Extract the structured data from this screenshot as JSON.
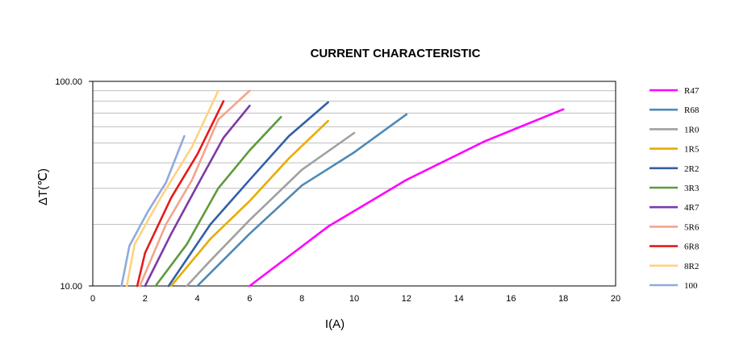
{
  "chart_data": {
    "type": "line",
    "title": "CURRENT CHARACTERISTIC",
    "xlabel": "I(A)",
    "ylabel": "ΔT(℃)",
    "x_scale": "linear",
    "y_scale": "log",
    "xlim": [
      0,
      20
    ],
    "ylim": [
      10,
      100
    ],
    "x_ticks": [
      "0",
      "2",
      "4",
      "6",
      "8",
      "10",
      "12",
      "14",
      "16",
      "18",
      "20"
    ],
    "y_ticks": [
      "10.00",
      "100.00"
    ],
    "grid": "horizontal log gridlines",
    "legend_position": "right",
    "series": [
      {
        "name": "R47",
        "color": "#ff00ff",
        "x": [
          6,
          9,
          12,
          15,
          18
        ],
        "y": [
          10,
          19.5,
          33,
          51,
          73
        ]
      },
      {
        "name": "R68",
        "color": "#4f89b5",
        "x": [
          4,
          6,
          8,
          10,
          12
        ],
        "y": [
          10,
          18,
          31,
          45,
          69
        ]
      },
      {
        "name": "1R0",
        "color": "#a0a0a0",
        "x": [
          3.6,
          4.5,
          6,
          8,
          10
        ],
        "y": [
          10,
          13.3,
          21,
          37,
          56
        ]
      },
      {
        "name": "1R5",
        "color": "#e6ac00",
        "x": [
          3,
          4.5,
          6,
          7.5,
          9
        ],
        "y": [
          10,
          17,
          26,
          42,
          64
        ]
      },
      {
        "name": "2R2",
        "color": "#335fa6",
        "x": [
          2.9,
          4.5,
          6,
          7.5,
          9
        ],
        "y": [
          10,
          20,
          33,
          54,
          79
        ]
      },
      {
        "name": "3R3",
        "color": "#5e9a3d",
        "x": [
          2.4,
          3.6,
          4.8,
          6,
          7.2
        ],
        "y": [
          10,
          16,
          30,
          46,
          67
        ]
      },
      {
        "name": "4R7",
        "color": "#7d3aa6",
        "x": [
          2,
          3,
          4,
          5,
          6
        ],
        "y": [
          10,
          18,
          31,
          53,
          76
        ]
      },
      {
        "name": "5R6",
        "color": "#f2a58c",
        "x": [
          1.8,
          2.8,
          3.8,
          4.8,
          6
        ],
        "y": [
          10,
          20,
          33,
          65,
          90
        ]
      },
      {
        "name": "6R8",
        "color": "#e61a1a",
        "x": [
          1.7,
          2,
          3,
          4,
          5
        ],
        "y": [
          10,
          14.5,
          27,
          44,
          80
        ]
      },
      {
        "name": "8R2",
        "color": "#ffd280",
        "x": [
          1.3,
          1.6,
          2.6,
          3.8,
          4.8
        ],
        "y": [
          10,
          16,
          27,
          48,
          90
        ]
      },
      {
        "name": "100",
        "color": "#8faadc",
        "x": [
          1.1,
          1.4,
          2.1,
          2.8,
          3.5
        ],
        "y": [
          10,
          15.7,
          23,
          32,
          54
        ]
      }
    ]
  }
}
